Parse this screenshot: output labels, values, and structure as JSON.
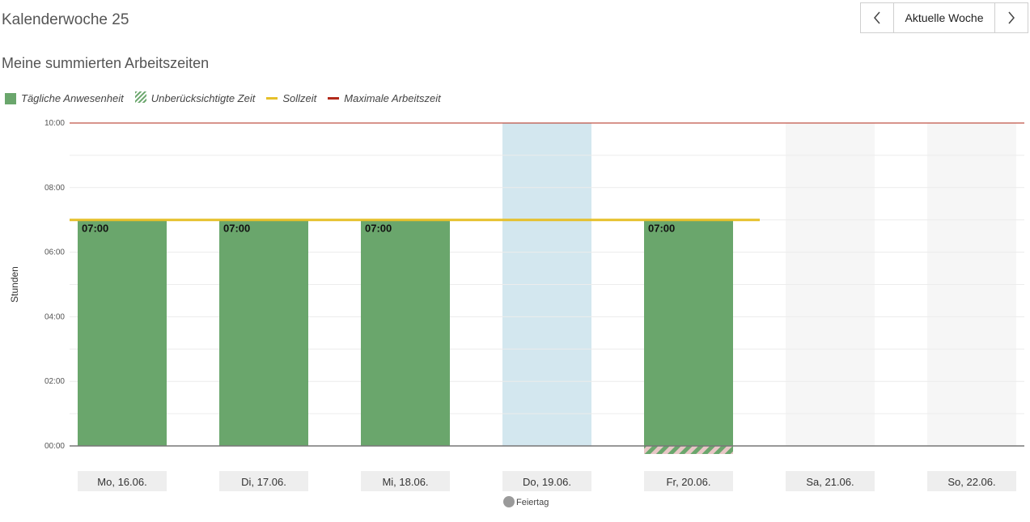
{
  "header": {
    "week_title": "Kalenderwoche 25",
    "nav_current": "Aktuelle Woche",
    "prev_icon": "chevron-left-icon",
    "next_icon": "chevron-right-icon"
  },
  "subtitle": "Meine summierten Arbeitszeiten",
  "legend": [
    {
      "key": "presence",
      "label": "Tägliche Anwesenheit",
      "color": "#6aa66c",
      "shape": "box"
    },
    {
      "key": "unaccounted",
      "label": "Unberücksichtigte Zeit",
      "color": "#6aa66c",
      "shape": "hatched"
    },
    {
      "key": "target",
      "label": "Sollzeit",
      "color": "#e6c02a",
      "shape": "line"
    },
    {
      "key": "max",
      "label": "Maximale Arbeitszeit",
      "color": "#b22a1a",
      "shape": "line"
    }
  ],
  "chart_data": {
    "type": "bar",
    "ylabel": "Stunden",
    "ylim": [
      0,
      10
    ],
    "yticks": [
      "00:00",
      "02:00",
      "04:00",
      "06:00",
      "08:00",
      "10:00"
    ],
    "yticks_values": [
      0,
      2,
      4,
      6,
      8,
      10
    ],
    "grid": true,
    "categories": [
      "Mo, 16.06.",
      "Di, 17.06.",
      "Mi, 18.06.",
      "Do, 19.06.",
      "Fr, 20.06.",
      "Sa, 21.06.",
      "So, 22.06."
    ],
    "series": [
      {
        "name": "Tägliche Anwesenheit",
        "values": [
          7,
          7,
          7,
          0,
          7,
          0,
          0
        ],
        "labels": [
          "07:00",
          "07:00",
          "07:00",
          "",
          "07:00",
          "",
          ""
        ]
      },
      {
        "name": "Unberücksichtigte Zeit",
        "values": [
          0,
          0,
          0,
          0,
          0.25,
          0,
          0
        ]
      }
    ],
    "target_hours": 7,
    "target_days": 5,
    "max_hours": 10,
    "day_types": [
      "work",
      "work",
      "work",
      "holiday",
      "work",
      "weekend",
      "weekend"
    ],
    "holiday_legend": "Feiertag",
    "colors": {
      "presence": "#6aa66c",
      "hatch": "#e8c6c6",
      "target": "#e6c02a",
      "max": "#b22a1a",
      "holiday_bg": "#d3e7ef",
      "weekend_bg": "#f6f6f6",
      "day_label_bg": "#eeeeee",
      "holiday_dot": "#9a9a9a"
    }
  }
}
